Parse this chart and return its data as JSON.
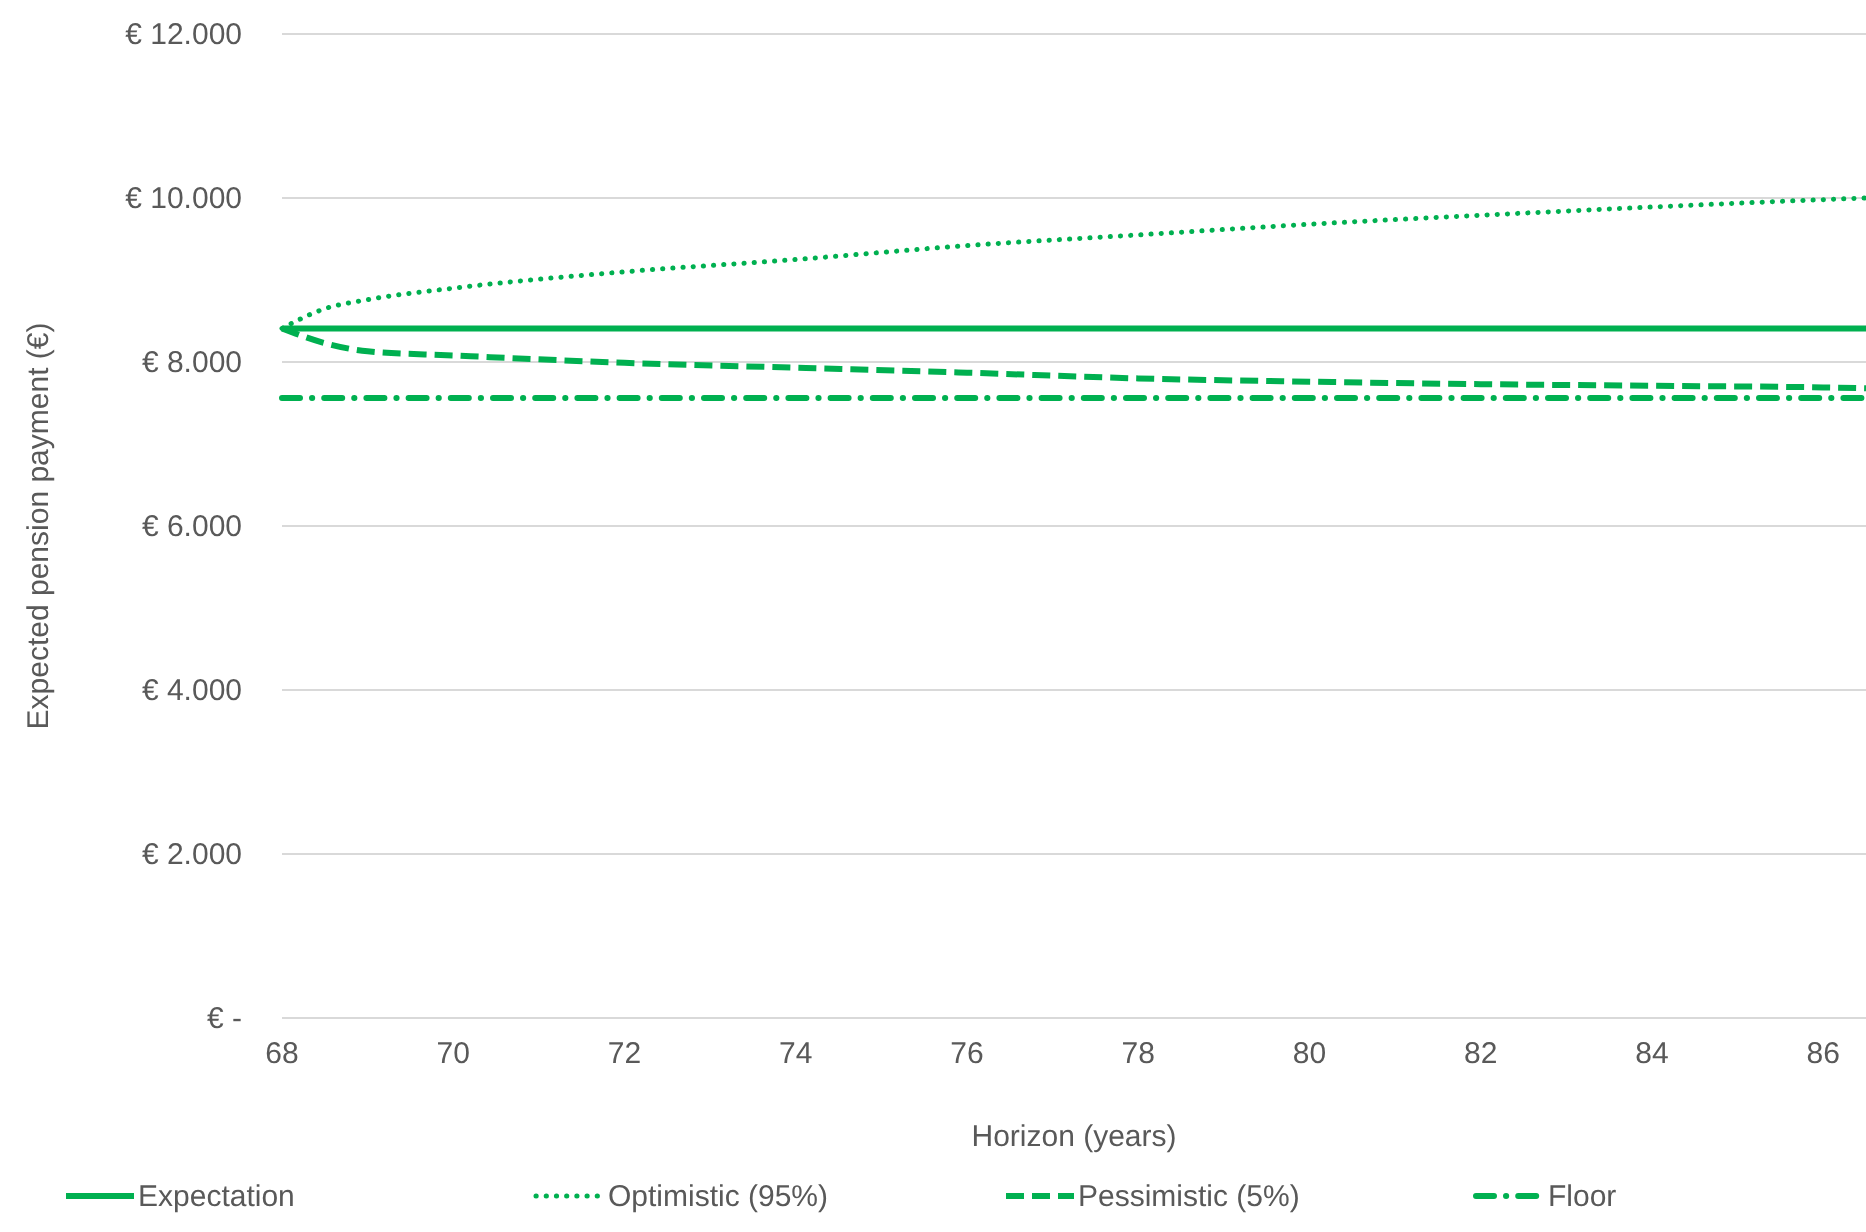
{
  "chart_data": {
    "type": "line",
    "xlabel": "Horizon (years)",
    "ylabel": "Expected pension payment (€)",
    "xlim": [
      68,
      86.5
    ],
    "xticks": [
      68,
      70,
      72,
      74,
      76,
      78,
      80,
      82,
      84,
      86
    ],
    "ylim": [
      0,
      12000
    ],
    "yticks": [
      {
        "value": 0,
        "label": "€ -"
      },
      {
        "value": 2000,
        "label": "€ 2.000"
      },
      {
        "value": 4000,
        "label": "€ 4.000"
      },
      {
        "value": 6000,
        "label": "€ 6.000"
      },
      {
        "value": 8000,
        "label": "€ 8.000"
      },
      {
        "value": 10000,
        "label": "€ 10.000"
      },
      {
        "value": 12000,
        "label": "€ 12.000"
      }
    ],
    "grid": "y",
    "legend": "bottom",
    "marker": "none",
    "series": [
      {
        "name": "Expectation",
        "color": "#00b050",
        "line_style": "solid",
        "x": [
          68,
          86.5
        ],
        "values": [
          8410,
          8410
        ]
      },
      {
        "name": "Optimistic (95%)",
        "color": "#00b050",
        "line_style": "dotted",
        "x": [
          68,
          68.5,
          69,
          70,
          72,
          74,
          76,
          78,
          80,
          82,
          84,
          86,
          86.5
        ],
        "values": [
          8410,
          8650,
          8760,
          8900,
          9100,
          9250,
          9420,
          9550,
          9680,
          9790,
          9890,
          9980,
          10000
        ]
      },
      {
        "name": "Pessimistic (5%)",
        "color": "#00b050",
        "line_style": "dashed",
        "x": [
          68,
          68.5,
          69,
          70,
          72,
          74,
          76,
          78,
          80,
          82,
          84,
          86,
          86.5
        ],
        "values": [
          8410,
          8230,
          8130,
          8080,
          7990,
          7930,
          7870,
          7800,
          7760,
          7730,
          7710,
          7690,
          7680
        ]
      },
      {
        "name": "Floor",
        "color": "#00b050",
        "line_style": "dashdot",
        "x": [
          68,
          86.5
        ],
        "values": [
          7560,
          7560
        ]
      }
    ]
  }
}
